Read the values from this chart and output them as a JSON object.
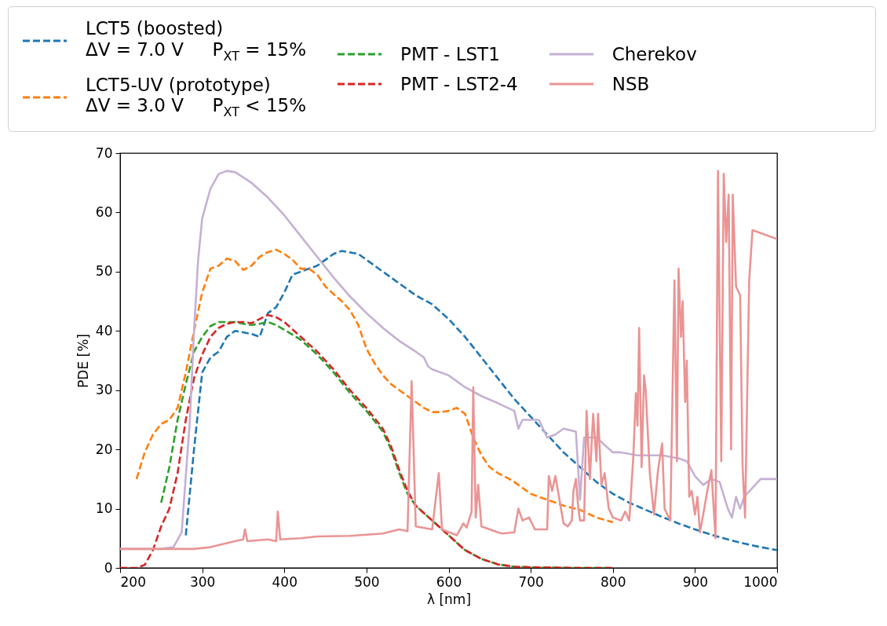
{
  "chart_data": {
    "type": "line",
    "xlabel": "λ [nm]",
    "ylabel": "PDE [%]",
    "xlim": [
      200,
      1000
    ],
    "ylim": [
      0,
      70
    ],
    "xticks": [
      200,
      300,
      400,
      500,
      600,
      700,
      800,
      900,
      1000
    ],
    "yticks": [
      0,
      10,
      20,
      30,
      40,
      50,
      60,
      70
    ],
    "grid": false,
    "legend": "top",
    "marker": "none",
    "series": [
      {
        "name": "LCT5 (boosted)\nΔV = 7.0 V     P$_{XT}$ = 15%",
        "color": "#1f77b4",
        "line_style": "dashed",
        "x": [
          280,
          290,
          300,
          310,
          320,
          330,
          340,
          360,
          370,
          380,
          390,
          400,
          410,
          420,
          440,
          460,
          470,
          490,
          500,
          520,
          540,
          560,
          580,
          600,
          620,
          640,
          660,
          680,
          700,
          720,
          740,
          760,
          780,
          800,
          820,
          840,
          860,
          880,
          900,
          920,
          940,
          960,
          980,
          1000
        ],
        "values": [
          5.5,
          20,
          33,
          35.5,
          36.5,
          39,
          40,
          39.5,
          39,
          43,
          44,
          46.5,
          49.5,
          50,
          51,
          53,
          53.5,
          53,
          52,
          50,
          48,
          46,
          44.5,
          42,
          39,
          35.5,
          32,
          28.5,
          25.5,
          22.5,
          19.5,
          17,
          14.5,
          12.5,
          11,
          9.8,
          8.6,
          7.5,
          6.5,
          5.6,
          4.8,
          4.1,
          3.5,
          3.0
        ]
      },
      {
        "name": "LCT5-UV (prototype)\nΔV = 3.0 V     P$_{XT}$ < 15%",
        "color": "#ff7f0e",
        "line_style": "dashed",
        "x": [
          220,
          230,
          240,
          250,
          260,
          270,
          280,
          290,
          300,
          310,
          320,
          330,
          340,
          350,
          360,
          370,
          380,
          390,
          400,
          410,
          420,
          430,
          440,
          450,
          460,
          470,
          480,
          490,
          500,
          510,
          520,
          530,
          540,
          550,
          560,
          570,
          580,
          590,
          600,
          610,
          620,
          630,
          640,
          650,
          660,
          670,
          680,
          690,
          700,
          720,
          740,
          760,
          780,
          800
        ],
        "values": [
          15,
          19.5,
          22.5,
          24.3,
          25,
          27,
          33,
          40,
          46.5,
          50.5,
          51,
          52.2,
          51.8,
          50.3,
          51,
          52.5,
          53.3,
          53.7,
          53,
          52,
          50.5,
          50.5,
          49.5,
          47.5,
          46.2,
          45,
          43.5,
          41,
          37,
          34.5,
          32.5,
          31,
          30,
          29,
          28,
          27,
          26.3,
          26.3,
          26.5,
          27,
          26,
          22,
          19,
          17,
          16,
          15.3,
          14.5,
          13.5,
          12.5,
          11.5,
          10.5,
          9.8,
          8.5,
          7.7
        ]
      },
      {
        "name": "PMT - LST1",
        "color": "#2ca02c",
        "line_style": "dashed",
        "x": [
          250,
          260,
          270,
          280,
          290,
          300,
          310,
          320,
          330,
          340,
          350,
          360,
          370,
          380,
          390,
          400,
          420,
          440,
          460,
          480,
          500,
          520,
          530,
          540,
          550,
          560,
          580,
          600,
          620,
          640,
          660,
          680,
          700,
          750,
          800
        ],
        "values": [
          11,
          17,
          25,
          31,
          36.5,
          39,
          40.8,
          41.5,
          41.5,
          41.5,
          41.2,
          41,
          41.2,
          41.5,
          41,
          40.2,
          38.5,
          36,
          33,
          29.5,
          26.5,
          23,
          20,
          16,
          12.5,
          10.5,
          8,
          5.5,
          3,
          1.5,
          0.6,
          0.2,
          0.1,
          0,
          0
        ]
      },
      {
        "name": "PMT - LST2-4",
        "color": "#d62728",
        "line_style": "dashed",
        "x": [
          200,
          220,
          230,
          240,
          250,
          260,
          270,
          280,
          290,
          300,
          310,
          320,
          330,
          340,
          350,
          360,
          370,
          380,
          390,
          400,
          420,
          440,
          460,
          480,
          500,
          520,
          530,
          540,
          550,
          560,
          580,
          600,
          620,
          640,
          660,
          680,
          700,
          750,
          800
        ],
        "values": [
          0,
          0,
          0.5,
          3,
          7,
          10,
          16,
          25,
          32,
          36,
          39,
          40.5,
          41.2,
          41.5,
          41.5,
          41.3,
          42,
          42.7,
          42.3,
          41.5,
          39,
          36.5,
          33.5,
          30,
          27,
          23.5,
          20.5,
          16.5,
          13,
          10.5,
          8,
          5.5,
          3,
          1.5,
          0.6,
          0.2,
          0.1,
          0,
          0
        ]
      },
      {
        "name": "Cherekov",
        "color": "#c5b0d5",
        "line_style": "solid",
        "x": [
          200,
          250,
          265,
          275,
          285,
          290,
          295,
          300,
          310,
          320,
          330,
          340,
          360,
          380,
          400,
          420,
          440,
          460,
          480,
          500,
          520,
          540,
          560,
          570,
          575,
          580,
          600,
          620,
          640,
          660,
          680,
          685,
          690,
          700,
          710,
          720,
          730,
          740,
          755,
          760,
          765,
          780,
          800,
          810,
          830,
          860,
          880,
          890,
          900,
          910,
          920,
          930,
          940,
          945,
          950,
          955,
          960,
          970,
          980,
          1000
        ],
        "values": [
          3.2,
          3.2,
          3.5,
          6,
          25,
          40,
          52,
          59,
          64,
          66.5,
          67,
          66.8,
          65,
          62.5,
          59.5,
          56,
          52.5,
          49,
          45.8,
          43,
          40.5,
          38.3,
          36.5,
          35.5,
          34,
          33.5,
          32.5,
          30.5,
          29,
          27.8,
          26.5,
          23.5,
          25,
          25,
          25,
          22,
          22.5,
          23.5,
          23,
          11.5,
          22,
          22,
          19.5,
          19.5,
          19,
          19,
          18.5,
          18,
          15.5,
          14,
          15,
          14.5,
          10,
          8.5,
          12,
          10,
          12,
          13.5,
          15,
          15
        ]
      },
      {
        "name": "NSB",
        "color": "#ea9494",
        "line_style": "solid",
        "x": [
          200,
          290,
          310,
          340,
          350,
          352,
          355,
          380,
          390,
          392,
          395,
          420,
          440,
          480,
          500,
          520,
          540,
          550,
          555,
          560,
          580,
          588,
          592,
          610,
          618,
          622,
          628,
          630,
          633,
          636,
          640,
          660,
          665,
          680,
          685,
          690,
          698,
          705,
          720,
          722,
          726,
          730,
          735,
          740,
          745,
          750,
          752,
          755,
          758,
          760,
          765,
          768,
          772,
          776,
          780,
          782,
          786,
          790,
          795,
          800,
          810,
          815,
          820,
          825,
          828,
          830,
          832,
          835,
          838,
          840,
          845,
          850,
          855,
          860,
          863,
          870,
          875,
          878,
          880,
          883,
          885,
          888,
          890,
          893,
          896,
          900,
          903,
          906,
          910,
          915,
          920,
          925,
          928,
          932,
          935,
          938,
          941,
          944,
          946,
          950,
          955,
          958,
          961,
          966,
          970,
          1000
        ],
        "values": [
          3.2,
          3.2,
          3.5,
          4.5,
          4.8,
          6.5,
          4.5,
          4.8,
          4.5,
          9.5,
          4.8,
          5,
          5.3,
          5.4,
          5.6,
          5.8,
          6.5,
          6.2,
          31.5,
          7,
          6.5,
          16,
          6.5,
          5.5,
          7.5,
          6.8,
          9.5,
          30.5,
          8.5,
          14,
          7,
          6,
          5.8,
          6,
          10,
          8,
          8.5,
          6.5,
          6.5,
          15.5,
          13,
          15.5,
          11.5,
          7.5,
          7,
          8,
          13,
          15,
          10,
          8,
          8,
          26.5,
          15,
          26,
          18,
          26,
          14,
          16,
          10,
          8.5,
          8,
          9.5,
          8,
          19,
          29.5,
          24,
          40.5,
          17,
          32.5,
          30,
          16,
          9,
          16.5,
          21,
          10,
          8,
          48.5,
          18,
          50.5,
          39,
          45,
          28,
          35,
          12,
          13,
          9,
          12,
          6,
          9,
          13,
          16.5,
          5,
          67,
          18,
          66.5,
          55,
          63,
          20,
          63,
          47.5,
          46,
          17,
          8.5,
          48.5,
          57,
          55.5
        ]
      }
    ]
  }
}
